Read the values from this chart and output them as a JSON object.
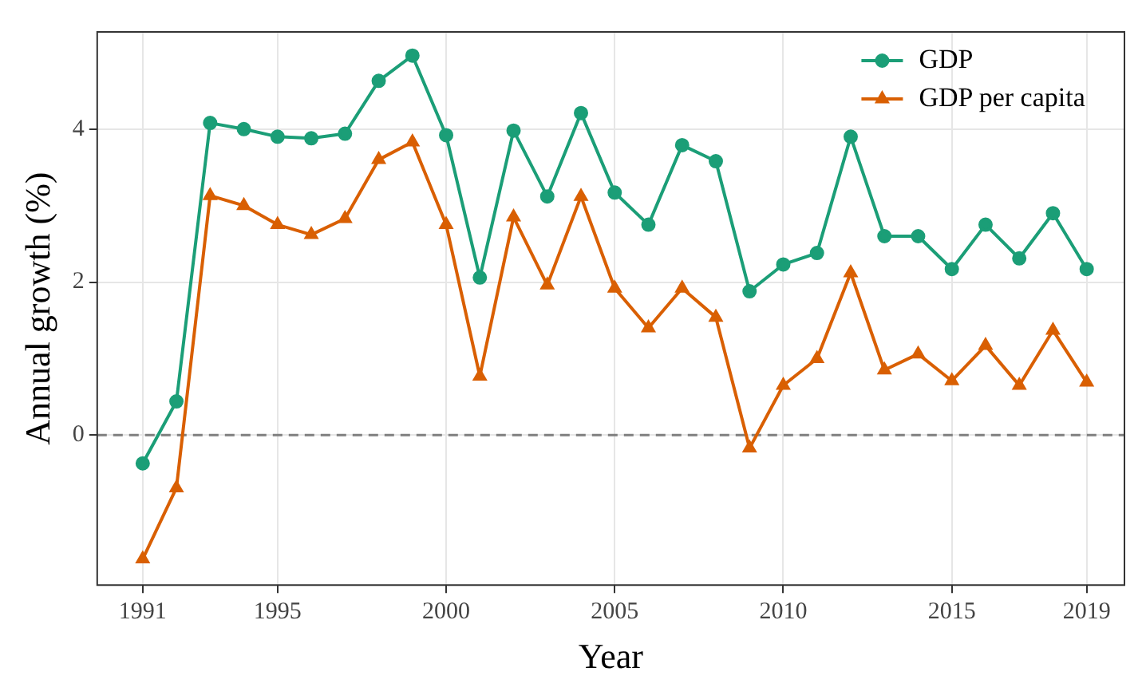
{
  "chart_data": {
    "type": "line",
    "xlabel": "Year",
    "ylabel": "Annual growth (%)",
    "x": [
      1991,
      1992,
      1993,
      1994,
      1995,
      1996,
      1997,
      1998,
      1999,
      2000,
      2001,
      2002,
      2003,
      2004,
      2005,
      2006,
      2007,
      2008,
      2009,
      2010,
      2011,
      2012,
      2013,
      2014,
      2015,
      2016,
      2017,
      2018,
      2019
    ],
    "series": [
      {
        "name": "GDP",
        "color": "#1b9e77",
        "marker": "circle",
        "values": [
          -0.37,
          0.44,
          4.08,
          4.0,
          3.9,
          3.88,
          3.94,
          4.63,
          4.96,
          3.92,
          2.06,
          3.98,
          3.12,
          4.21,
          3.17,
          2.75,
          3.79,
          3.58,
          1.88,
          2.23,
          2.38,
          3.9,
          2.6,
          2.6,
          2.17,
          2.75,
          2.31,
          2.9,
          2.17
        ]
      },
      {
        "name": "GDP per capita",
        "color": "#d95f02",
        "marker": "triangle",
        "values": [
          -1.62,
          -0.69,
          3.13,
          3.0,
          2.75,
          2.62,
          2.83,
          3.6,
          3.83,
          2.75,
          0.77,
          2.85,
          1.96,
          3.12,
          1.92,
          1.4,
          1.92,
          1.54,
          -0.17,
          0.65,
          1.0,
          2.12,
          0.85,
          1.06,
          0.71,
          1.17,
          0.65,
          1.37,
          0.69
        ]
      }
    ],
    "xlim": [
      1989.65,
      2020.12
    ],
    "xticks": [
      1991,
      1995,
      2000,
      2005,
      2010,
      2015,
      2019
    ],
    "ylim": [
      -1.96,
      5.27
    ],
    "yticks": [
      0,
      2,
      4
    ],
    "ref_lines": [
      {
        "axis": "y",
        "value": 0,
        "color": "#7f7f7f",
        "line_style": "dashed"
      }
    ],
    "grid": true,
    "legend": "top right",
    "line_style": "solid"
  }
}
